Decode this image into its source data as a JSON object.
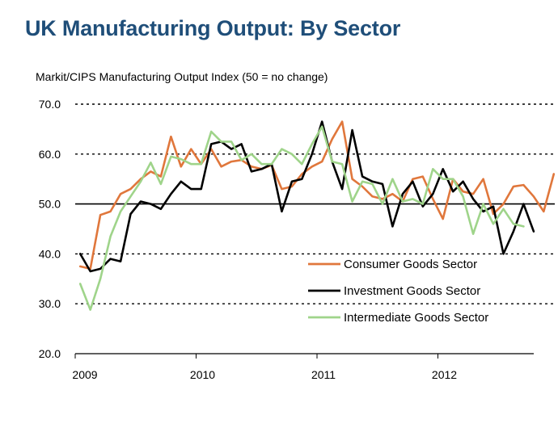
{
  "colors": {
    "title": "#1f4e79",
    "consumer": "#e0773c",
    "investment": "#000000",
    "intermediate": "#9fd48a"
  },
  "chart_data": {
    "type": "line",
    "title": "UK Manufacturing Output: By Sector",
    "subtitle": "Markit/CIPS Manufacturing Output Index (50 = no change)",
    "xlabel": "",
    "ylabel": "",
    "ylim": [
      20,
      70
    ],
    "yticks": [
      "70.0",
      "60.0",
      "50.0",
      "40.0",
      "30.0",
      "20.0"
    ],
    "xticks": [
      "2009",
      "2010",
      "2011",
      "2012"
    ],
    "grid": "dotted horizontal",
    "legend": "bottom-right",
    "x_start": "2009-01",
    "series": [
      {
        "name": "Consumer Goods Sector",
        "color": "#e0773c",
        "values": [
          37.5,
          37.0,
          47.8,
          48.5,
          52.0,
          53.0,
          55.0,
          56.5,
          55.5,
          63.5,
          57.5,
          61.0,
          58.0,
          61.0,
          57.5,
          58.5,
          58.8,
          57.5,
          57.0,
          57.8,
          53.0,
          53.5,
          56.0,
          57.5,
          58.5,
          63.0,
          66.5,
          55.0,
          53.5,
          51.5,
          51.0,
          52.0,
          50.5,
          55.0,
          55.5,
          51.0,
          47.0,
          55.0,
          52.5,
          52.0,
          55.0,
          48.0,
          50.0,
          53.5,
          53.8,
          51.5,
          48.5,
          56.0
        ]
      },
      {
        "name": "Investment Goods Sector",
        "color": "#000000",
        "values": [
          40.0,
          36.5,
          37.0,
          39.0,
          38.5,
          48.0,
          50.5,
          50.0,
          49.0,
          52.0,
          54.5,
          53.0,
          53.0,
          62.0,
          62.5,
          61.0,
          62.0,
          56.5,
          57.0,
          58.0,
          48.5,
          54.5,
          55.0,
          60.0,
          66.5,
          58.5,
          53.0,
          64.8,
          55.5,
          54.5,
          54.0,
          45.5,
          52.0,
          54.5,
          49.5,
          52.0,
          57.0,
          52.5,
          54.5,
          51.0,
          48.5,
          49.5,
          40.0,
          44.5,
          50.0,
          44.5
        ]
      },
      {
        "name": "Intermediate Goods Sector",
        "color": "#9fd48a",
        "values": [
          34.0,
          28.8,
          35.0,
          43.5,
          48.5,
          51.5,
          54.5,
          58.3,
          54.0,
          59.5,
          59.0,
          58.0,
          58.0,
          64.5,
          62.5,
          62.5,
          58.8,
          60.0,
          58.0,
          58.0,
          61.0,
          60.0,
          58.0,
          62.0,
          65.5,
          58.5,
          58.0,
          50.5,
          54.5,
          54.0,
          50.0,
          55.0,
          50.5,
          51.0,
          50.0,
          57.0,
          55.0,
          55.0,
          51.5,
          44.0,
          50.0,
          46.0,
          49.0,
          46.0,
          45.5
        ]
      }
    ]
  }
}
